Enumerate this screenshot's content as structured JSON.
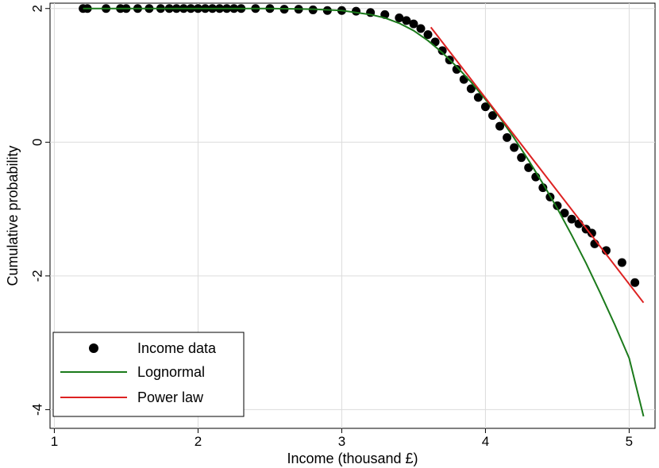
{
  "chart_data": {
    "type": "scatter",
    "title": "",
    "xlabel": "Income (thousand £)",
    "ylabel": "Cumulative probability",
    "xlim": [
      0.97,
      5.18
    ],
    "ylim": [
      -4.28,
      2.08
    ],
    "xticks": [
      1,
      2,
      3,
      4,
      5
    ],
    "yticks": [
      2,
      0,
      -2,
      -4
    ],
    "grid": true,
    "legend": {
      "placement": "bottom-left",
      "entries": [
        {
          "label": "Income data",
          "marker": "dot",
          "color": "#000000"
        },
        {
          "label": "Lognormal",
          "marker": "line",
          "color": "#1b7a1b"
        },
        {
          "label": "Power law",
          "marker": "line",
          "color": "#dd2222"
        }
      ]
    },
    "series": [
      {
        "name": "Income data",
        "kind": "scatter",
        "color": "#000000",
        "x": [
          1.2,
          1.23,
          1.36,
          1.46,
          1.5,
          1.58,
          1.66,
          1.74,
          1.8,
          1.85,
          1.9,
          1.95,
          2.0,
          2.05,
          2.1,
          2.15,
          2.2,
          2.25,
          2.3,
          2.4,
          2.5,
          2.6,
          2.7,
          2.8,
          2.9,
          3.0,
          3.1,
          3.2,
          3.3,
          3.4,
          3.45,
          3.5,
          3.55,
          3.6,
          3.65,
          3.7,
          3.75,
          3.8,
          3.85,
          3.9,
          3.95,
          4.0,
          4.05,
          4.1,
          4.15,
          4.2,
          4.25,
          4.3,
          4.35,
          4.4,
          4.45,
          4.5,
          4.55,
          4.6,
          4.65,
          4.7,
          4.74,
          4.76,
          4.84,
          4.95,
          5.04
        ],
        "y": [
          2.0,
          2.0,
          2.0,
          2.0,
          2.0,
          2.0,
          2.0,
          2.0,
          2.0,
          2.0,
          2.0,
          2.0,
          2.0,
          2.0,
          2.0,
          2.0,
          2.0,
          2.0,
          2.0,
          2.0,
          2.0,
          1.99,
          1.99,
          1.98,
          1.97,
          1.97,
          1.96,
          1.94,
          1.91,
          1.86,
          1.82,
          1.77,
          1.7,
          1.61,
          1.5,
          1.37,
          1.23,
          1.09,
          0.94,
          0.8,
          0.67,
          0.53,
          0.4,
          0.24,
          0.07,
          -0.08,
          -0.23,
          -0.38,
          -0.52,
          -0.68,
          -0.82,
          -0.95,
          -1.06,
          -1.15,
          -1.22,
          -1.3,
          -1.36,
          -1.52,
          -1.62,
          -1.8,
          -2.1
        ]
      },
      {
        "name": "Lognormal",
        "kind": "line",
        "color": "#1b7a1b",
        "x": [
          1.2,
          2.0,
          2.5,
          2.8,
          3.0,
          3.2,
          3.3,
          3.4,
          3.5,
          3.6,
          3.7,
          3.8,
          3.9,
          4.0,
          4.1,
          4.2,
          4.3,
          4.4,
          4.5,
          4.6,
          4.7,
          4.8,
          4.9,
          5.0,
          5.1
        ],
        "y": [
          2.0,
          2.0,
          2.0,
          1.99,
          1.97,
          1.91,
          1.86,
          1.78,
          1.67,
          1.52,
          1.34,
          1.13,
          0.9,
          0.64,
          0.37,
          0.06,
          -0.27,
          -0.62,
          -0.99,
          -1.39,
          -1.81,
          -2.26,
          -2.73,
          -3.23,
          -4.1
        ]
      },
      {
        "name": "Power law",
        "kind": "line",
        "color": "#dd2222",
        "x": [
          3.62,
          5.1
        ],
        "y": [
          1.72,
          -2.4
        ]
      }
    ]
  }
}
